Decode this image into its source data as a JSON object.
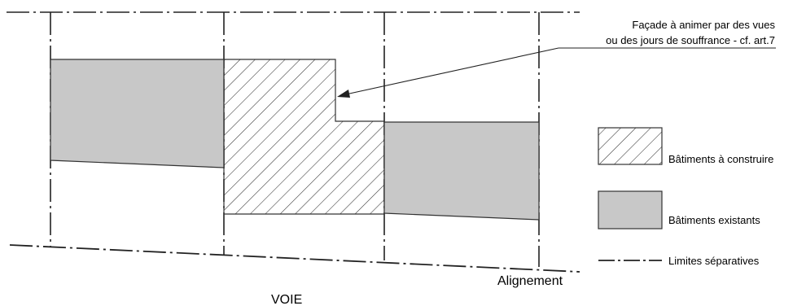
{
  "annotation": {
    "line1": "Façade à animer par des vues",
    "line2": "ou des jours de souffrance - cf. art.7"
  },
  "labels": {
    "alignement": "Alignement",
    "voie": "VOIE"
  },
  "legend": {
    "to_build": "Bâtiments à construire",
    "existing": "Bâtiments existants",
    "limits": "Limites séparatives"
  },
  "colors": {
    "existing_fill": "#c8c8c8",
    "outline": "#333333",
    "hatch": "#333333",
    "boundary_line": "#222222"
  }
}
